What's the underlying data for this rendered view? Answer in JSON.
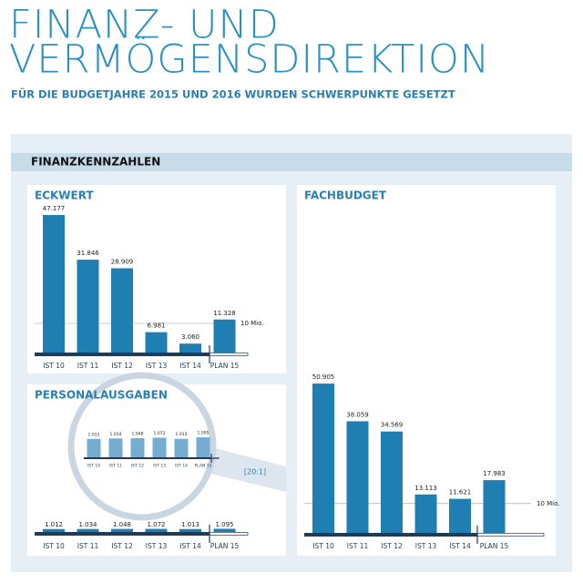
{
  "header": {
    "title_lines": [
      "FINANZ- UND",
      "VERMÖGENSDIREKTION"
    ],
    "subtitle": "FÜR DIE BUDGETJAHRE 2015 UND 2016 WURDEN SCHWERPUNKTE GESETZT",
    "section": "FINANZKENNZAHLEN"
  },
  "chart_data": [
    {
      "type": "bar",
      "title": "ECKWERT",
      "color": "#1f7fb3",
      "categories": [
        "IST 10",
        "IST 11",
        "IST 12",
        "IST 13",
        "IST 14",
        "PLAN 15"
      ],
      "values": [
        47.177,
        31.846,
        28.909,
        6.981,
        3.06,
        11.328
      ],
      "value_labels": [
        "47.177",
        "31.846",
        "28.909",
        "6.981",
        "3.060",
        "11.328"
      ],
      "reference": {
        "value": 10,
        "label": "10 Mio."
      }
    },
    {
      "type": "bar",
      "title": "PERSONALAUSGABEN",
      "color": "#1f7fb3",
      "zoom_color": "#74add0",
      "categories": [
        "IST 10",
        "IST 11",
        "IST 12",
        "IST 13",
        "IST 14",
        "PLAN 15"
      ],
      "values": [
        1.012,
        1.034,
        1.048,
        1.072,
        1.013,
        1.095
      ],
      "value_labels": [
        "1.012",
        "1.034",
        "1.048",
        "1.072",
        "1.013",
        "1.095"
      ],
      "zoom_label": "[20:1]"
    },
    {
      "type": "bar",
      "title": "FACHBUDGET",
      "color": "#1f7fb3",
      "categories": [
        "IST 10",
        "IST 11",
        "IST 12",
        "IST 13",
        "IST 14",
        "PLAN 15"
      ],
      "values": [
        50.905,
        38.059,
        34.569,
        13.113,
        11.621,
        17.983
      ],
      "value_labels": [
        "50.905",
        "38.059",
        "34.569",
        "13.113",
        "11.621",
        "17.983"
      ],
      "reference": {
        "value": 10,
        "label": "10 Mio."
      }
    }
  ]
}
